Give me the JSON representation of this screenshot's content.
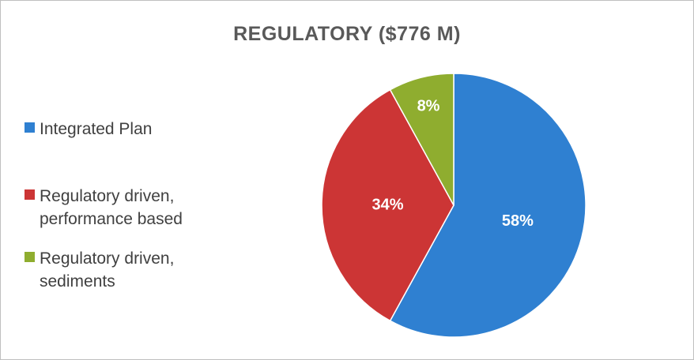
{
  "chart_data": {
    "type": "pie",
    "title": "REGULATORY ($776 M)",
    "categories": [
      "Integrated Plan",
      "Regulatory driven, performance based",
      "Regulatory driven, sediments"
    ],
    "values": [
      58,
      34,
      8
    ],
    "value_labels": [
      "58%",
      "34%",
      "8%"
    ],
    "colors": [
      "#2f80d1",
      "#cc3535",
      "#8fad2f"
    ],
    "legend": "left"
  }
}
